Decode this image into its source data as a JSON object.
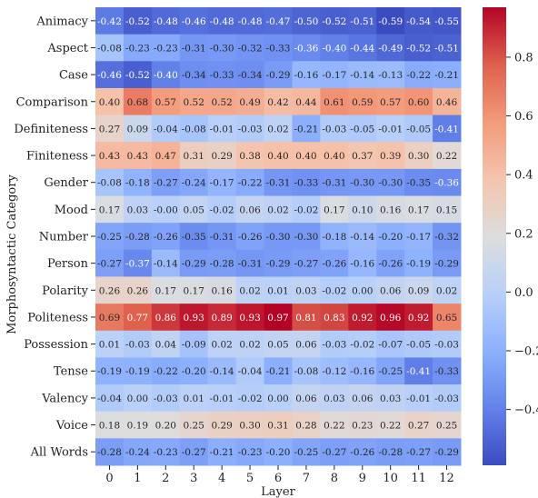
{
  "chart_data": {
    "type": "heatmap",
    "title": "",
    "xlabel": "Layer",
    "ylabel": "Morphosyntactic Category",
    "x": [
      "0",
      "1",
      "2",
      "3",
      "4",
      "5",
      "6",
      "7",
      "8",
      "9",
      "10",
      "11",
      "12"
    ],
    "y": [
      "Animacy",
      "Aspect",
      "Case",
      "Comparison",
      "Definiteness",
      "Finiteness",
      "Gender",
      "Mood",
      "Number",
      "Person",
      "Polarity",
      "Politeness",
      "Possession",
      "Tense",
      "Valency",
      "Voice",
      "All Words"
    ],
    "values": [
      [
        -0.42,
        -0.52,
        -0.48,
        -0.46,
        -0.48,
        -0.48,
        -0.47,
        -0.5,
        -0.52,
        -0.51,
        -0.59,
        -0.54,
        -0.55
      ],
      [
        -0.08,
        -0.23,
        -0.23,
        -0.31,
        -0.3,
        -0.32,
        -0.33,
        -0.36,
        -0.4,
        -0.44,
        -0.49,
        -0.52,
        -0.51
      ],
      [
        -0.46,
        -0.52,
        -0.4,
        -0.34,
        -0.33,
        -0.34,
        -0.29,
        -0.16,
        -0.17,
        -0.14,
        -0.13,
        -0.22,
        -0.21
      ],
      [
        0.4,
        0.68,
        0.57,
        0.52,
        0.52,
        0.49,
        0.42,
        0.44,
        0.61,
        0.59,
        0.57,
        0.6,
        0.46
      ],
      [
        0.27,
        0.09,
        -0.04,
        -0.08,
        -0.01,
        -0.03,
        0.02,
        -0.21,
        -0.03,
        -0.05,
        -0.01,
        -0.05,
        -0.41
      ],
      [
        0.43,
        0.43,
        0.47,
        0.31,
        0.29,
        0.38,
        0.4,
        0.4,
        0.4,
        0.37,
        0.39,
        0.3,
        0.22
      ],
      [
        -0.08,
        -0.18,
        -0.27,
        -0.24,
        -0.17,
        -0.22,
        -0.31,
        -0.33,
        -0.31,
        -0.3,
        -0.3,
        -0.35,
        -0.36
      ],
      [
        0.17,
        0.03,
        -0.0,
        0.05,
        -0.02,
        0.06,
        0.02,
        -0.02,
        0.17,
        0.1,
        0.16,
        0.17,
        0.15
      ],
      [
        -0.25,
        -0.28,
        -0.26,
        -0.35,
        -0.31,
        -0.26,
        -0.3,
        -0.3,
        -0.18,
        -0.14,
        -0.2,
        -0.17,
        -0.32
      ],
      [
        -0.27,
        -0.37,
        -0.14,
        -0.29,
        -0.28,
        -0.31,
        -0.29,
        -0.27,
        -0.26,
        -0.16,
        -0.26,
        -0.19,
        -0.29
      ],
      [
        0.26,
        0.26,
        0.17,
        0.17,
        0.16,
        0.02,
        0.01,
        0.03,
        -0.02,
        0.0,
        0.06,
        0.09,
        0.02
      ],
      [
        0.69,
        0.77,
        0.86,
        0.93,
        0.89,
        0.93,
        0.97,
        0.81,
        0.83,
        0.92,
        0.96,
        0.92,
        0.65
      ],
      [
        0.01,
        -0.03,
        0.04,
        -0.09,
        0.02,
        0.02,
        0.05,
        0.06,
        -0.03,
        -0.02,
        -0.07,
        -0.05,
        -0.03
      ],
      [
        -0.19,
        -0.19,
        -0.22,
        -0.2,
        -0.14,
        -0.04,
        -0.21,
        -0.08,
        -0.12,
        -0.16,
        -0.25,
        -0.41,
        -0.33
      ],
      [
        -0.04,
        0.0,
        -0.03,
        0.01,
        -0.01,
        -0.02,
        0.0,
        0.06,
        0.03,
        0.06,
        0.03,
        -0.01,
        -0.03
      ],
      [
        0.18,
        0.19,
        0.2,
        0.25,
        0.29,
        0.3,
        0.31,
        0.28,
        0.22,
        0.23,
        0.22,
        0.27,
        0.25
      ],
      [
        -0.28,
        -0.24,
        -0.23,
        -0.27,
        -0.21,
        -0.23,
        -0.2,
        -0.25,
        -0.27,
        -0.26,
        -0.28,
        -0.27,
        -0.29
      ]
    ],
    "colormap": "coolwarm",
    "vmin": -0.59,
    "vmax": 0.97,
    "colorbar_ticks": [
      0.8,
      0.6,
      0.4,
      0.2,
      0.0,
      -0.2,
      -0.4
    ],
    "colorbar_tick_labels": [
      "0.8",
      "0.6",
      "0.4",
      "0.2",
      "0.0",
      "−0.2",
      "−0.4"
    ],
    "legend": "colorbar-right"
  }
}
